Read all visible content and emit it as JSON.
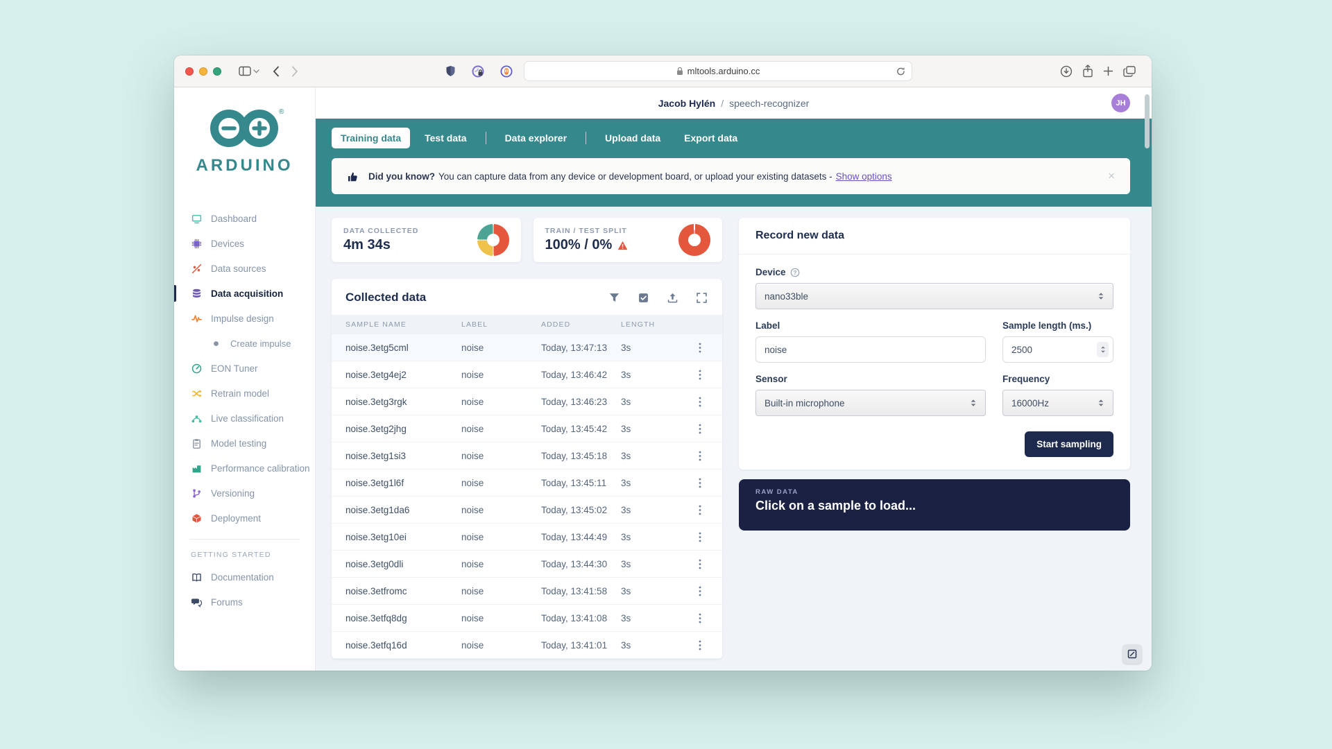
{
  "colors": {
    "teal": "#35898d",
    "navy": "#1e2a4d",
    "red": "#e4573d",
    "yellow": "#efc24b",
    "donut_teal": "#4da394",
    "purple_link": "#6a4fc0",
    "avatar_purple": "#a87fd8"
  },
  "browser": {
    "url": "mltools.arduino.cc",
    "left_icons": [
      "sidebar-toggle-icon",
      "chevron-down-icon",
      "back-icon",
      "forward-icon"
    ],
    "center_icons": [
      "shield-icon",
      "privacy-badge-icon",
      "privacy-hand-icon",
      "lock-icon",
      "reload-icon"
    ],
    "right_icons": [
      "download-icon",
      "share-icon",
      "new-tab-icon",
      "tab-overview-icon"
    ]
  },
  "topbar": {
    "user": "Jacob Hylén",
    "separator": "/",
    "project": "speech-recognizer",
    "avatar_initials": "JH"
  },
  "tabs": [
    {
      "label": "Training data",
      "active": true
    },
    {
      "label": "Test data",
      "divider_after": true
    },
    {
      "label": "Data explorer",
      "divider_after": true
    },
    {
      "label": "Upload data"
    },
    {
      "label": "Export data"
    }
  ],
  "banner": {
    "icon": "thumbs-up-icon",
    "title": "Did you know?",
    "text": "You can capture data from any device or development board, or upload your existing datasets -",
    "link": "Show options",
    "close": "×"
  },
  "stats": {
    "collected": {
      "label": "DATA COLLECTED",
      "value": "4m 34s",
      "donut": {
        "segments": [
          {
            "color": "#e4573d",
            "from": 2,
            "to": 178
          },
          {
            "color": "#efc24b",
            "from": 182,
            "to": 268
          },
          {
            "color": "#4da394",
            "from": 272,
            "to": 358
          }
        ]
      }
    },
    "split": {
      "label": "TRAIN / TEST SPLIT",
      "value": "100% / 0%",
      "warning_icon": "warning-icon",
      "donut": {
        "segments": [
          {
            "color": "#e4573d",
            "from": 3,
            "to": 357
          }
        ]
      }
    }
  },
  "collected": {
    "title": "Collected data",
    "toolbar_icons": [
      "filter-icon",
      "select-samples-icon",
      "upload-icon",
      "expand-icon"
    ],
    "columns": [
      "SAMPLE NAME",
      "LABEL",
      "ADDED",
      "LENGTH"
    ],
    "rows": [
      {
        "name": "noise.3etg5cml",
        "label": "noise",
        "added": "Today, 13:47:13",
        "length": "3s",
        "highlight": true
      },
      {
        "name": "noise.3etg4ej2",
        "label": "noise",
        "added": "Today, 13:46:42",
        "length": "3s"
      },
      {
        "name": "noise.3etg3rgk",
        "label": "noise",
        "added": "Today, 13:46:23",
        "length": "3s"
      },
      {
        "name": "noise.3etg2jhg",
        "label": "noise",
        "added": "Today, 13:45:42",
        "length": "3s"
      },
      {
        "name": "noise.3etg1si3",
        "label": "noise",
        "added": "Today, 13:45:18",
        "length": "3s"
      },
      {
        "name": "noise.3etg1l6f",
        "label": "noise",
        "added": "Today, 13:45:11",
        "length": "3s"
      },
      {
        "name": "noise.3etg1da6",
        "label": "noise",
        "added": "Today, 13:45:02",
        "length": "3s"
      },
      {
        "name": "noise.3etg10ei",
        "label": "noise",
        "added": "Today, 13:44:49",
        "length": "3s"
      },
      {
        "name": "noise.3etg0dli",
        "label": "noise",
        "added": "Today, 13:44:30",
        "length": "3s"
      },
      {
        "name": "noise.3etfromc",
        "label": "noise",
        "added": "Today, 13:41:58",
        "length": "3s"
      },
      {
        "name": "noise.3etfq8dg",
        "label": "noise",
        "added": "Today, 13:41:08",
        "length": "3s"
      },
      {
        "name": "noise.3etfq16d",
        "label": "noise",
        "added": "Today, 13:41:01",
        "length": "3s"
      }
    ]
  },
  "record": {
    "title": "Record new data",
    "device_label": "Device",
    "device_help_icon": "help-circle-icon",
    "device_value": "nano33ble",
    "label_label": "Label",
    "label_value": "noise",
    "sample_length_label": "Sample length (ms.)",
    "sample_length_value": "2500",
    "sensor_label": "Sensor",
    "sensor_value": "Built-in microphone",
    "frequency_label": "Frequency",
    "frequency_value": "16000Hz",
    "start_button": "Start sampling"
  },
  "raw": {
    "label": "RAW DATA",
    "message": "Click on a sample to load..."
  },
  "sidebar": {
    "brand": "ARDUINO",
    "items": [
      {
        "icon": "monitor-icon",
        "label": "Dashboard",
        "color": "#4ec0b1"
      },
      {
        "icon": "chip-icon",
        "label": "Devices",
        "color": "#7a5fd0"
      },
      {
        "icon": "scatter-icon",
        "label": "Data sources",
        "color": "#e4573d"
      },
      {
        "icon": "database-icon",
        "label": "Data acquisition",
        "color": "#6f5bb5",
        "active": true
      },
      {
        "icon": "pulse-icon",
        "label": "Impulse design",
        "color": "#ee8031"
      },
      {
        "icon": "dot-icon",
        "label": "Create impulse",
        "color": "#8a93a3",
        "sub": true
      },
      {
        "icon": "gauge-icon",
        "label": "EON Tuner",
        "color": "#2ea58c"
      },
      {
        "icon": "shuffle-icon",
        "label": "Retrain model",
        "color": "#f0b62f"
      },
      {
        "icon": "nodes-icon",
        "label": "Live classification",
        "color": "#3fbfa0"
      },
      {
        "icon": "clipboard-icon",
        "label": "Model testing",
        "color": "#8a93a3"
      },
      {
        "icon": "bars-icon",
        "label": "Performance calibration",
        "color": "#2ea58c"
      },
      {
        "icon": "branch-icon",
        "label": "Versioning",
        "color": "#8a63d2"
      },
      {
        "icon": "cube-icon",
        "label": "Deployment",
        "color": "#e4573d"
      }
    ],
    "section": "GETTING STARTED",
    "footer_items": [
      {
        "icon": "book-icon",
        "label": "Documentation",
        "color": "#3c4a66"
      },
      {
        "icon": "chat-icon",
        "label": "Forums",
        "color": "#3c4a66"
      }
    ]
  }
}
